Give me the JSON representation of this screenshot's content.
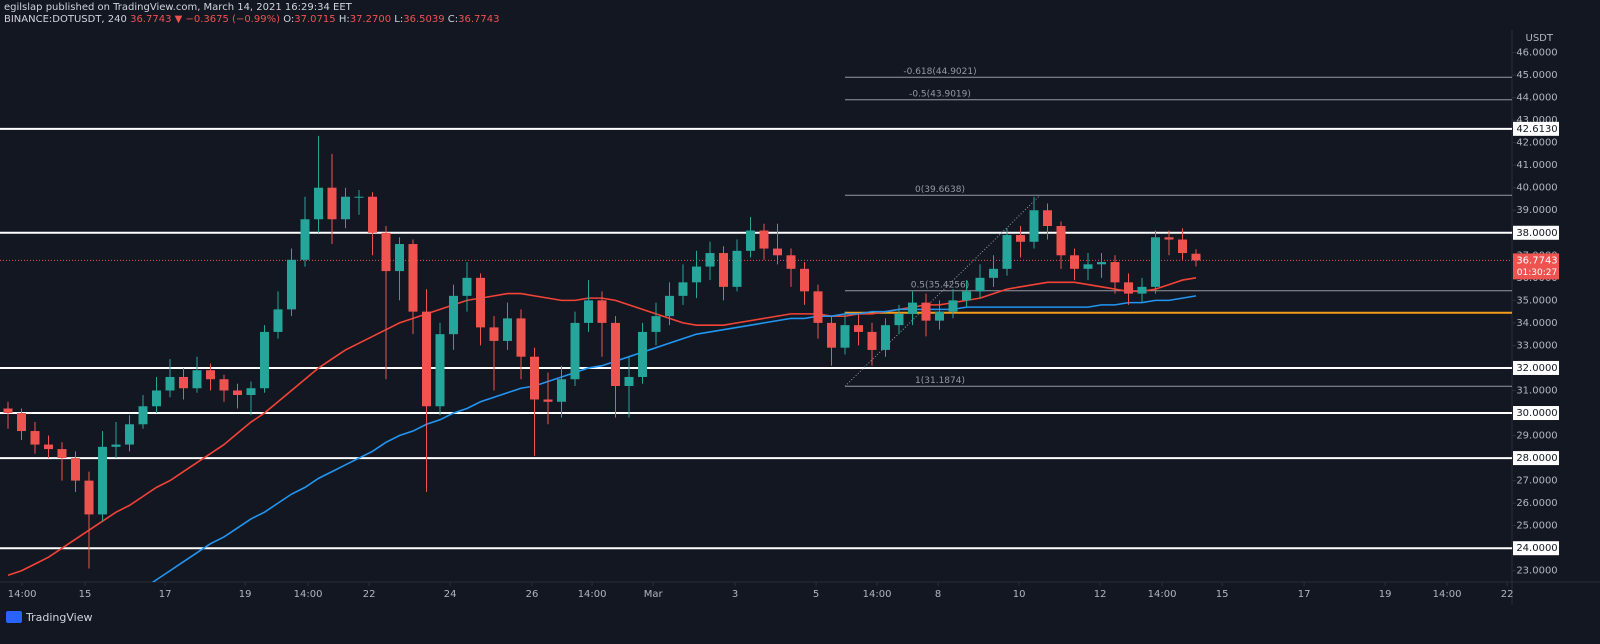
{
  "header": {
    "publisher": "egilslap published on TradingView.com, March 14, 2021 16:29:34 EET",
    "symbol": "BINANCE:DOTUSDT, 240",
    "price": "36.7743",
    "change": "▼ −0.3675 (−0.99%)",
    "o_key": "O:",
    "o": "37.0715",
    "h_key": "H:",
    "h": "37.2700",
    "l_key": "L:",
    "l": "36.5039",
    "c_key": "C:",
    "c": "36.7743"
  },
  "footer": {
    "logo": "TradingView"
  },
  "chart_data": {
    "type": "candlestick",
    "currency": "USDT",
    "up_color": "#26a69a",
    "down_color": "#ef5350",
    "open": [
      30.2,
      30.0,
      29.2,
      28.6,
      28.4,
      28.0,
      27.0,
      25.5,
      28.5,
      28.6,
      29.5,
      30.3,
      31.0,
      31.6,
      31.1,
      31.9,
      31.5,
      31.0,
      30.8,
      31.1,
      33.6,
      34.6,
      36.8,
      38.6,
      40.0,
      38.6,
      39.6,
      39.6,
      38.0,
      36.3,
      37.5,
      34.5,
      30.3,
      33.5,
      35.2,
      36.0,
      33.8,
      33.2,
      34.2,
      32.5,
      30.6,
      30.5,
      31.5,
      34.0,
      35.0,
      34.0,
      31.2,
      31.6,
      33.6,
      34.3,
      35.2,
      35.8,
      36.5,
      37.1,
      35.6,
      37.2,
      38.1,
      37.3,
      37.0,
      36.4,
      35.4,
      34.0,
      32.9,
      33.9,
      33.6,
      32.8,
      33.9,
      34.4,
      34.9,
      34.1,
      34.5,
      35.0,
      35.4,
      36.0,
      36.4,
      37.9,
      37.6,
      39.0,
      38.3,
      37.0,
      36.4,
      36.6,
      36.7,
      35.8,
      35.3,
      35.6,
      37.8,
      37.7,
      37.0715
    ],
    "high": [
      30.5,
      30.2,
      29.6,
      29.0,
      28.7,
      28.3,
      27.4,
      29.2,
      29.6,
      29.9,
      30.8,
      31.6,
      32.4,
      32.0,
      32.5,
      32.2,
      31.7,
      31.3,
      31.4,
      33.9,
      35.4,
      37.3,
      39.6,
      42.3,
      41.5,
      40.0,
      39.9,
      39.8,
      38.3,
      37.8,
      37.7,
      35.5,
      34.0,
      35.7,
      36.7,
      36.2,
      34.3,
      34.9,
      34.6,
      32.9,
      31.8,
      32.1,
      34.5,
      35.9,
      35.4,
      34.3,
      32.5,
      34.0,
      34.9,
      35.8,
      36.6,
      37.2,
      37.6,
      37.4,
      37.7,
      38.7,
      38.4,
      38.4,
      37.3,
      36.7,
      35.7,
      34.3,
      34.5,
      34.4,
      34.0,
      34.2,
      34.8,
      35.4,
      35.3,
      35.0,
      35.5,
      35.9,
      36.6,
      37.0,
      38.2,
      38.3,
      39.6,
      39.3,
      38.5,
      37.3,
      37.1,
      37.1,
      37.0,
      36.2,
      36.0,
      38.1,
      38.1,
      38.2,
      37.27
    ],
    "low": [
      29.3,
      28.8,
      28.2,
      28.0,
      27.0,
      26.5,
      23.1,
      25.2,
      28.0,
      28.3,
      29.3,
      30.0,
      30.7,
      30.6,
      30.9,
      31.0,
      30.5,
      30.2,
      29.9,
      30.9,
      33.3,
      34.3,
      36.5,
      38.0,
      37.5,
      38.2,
      38.8,
      37.0,
      31.5,
      35.0,
      33.5,
      26.5,
      29.9,
      32.8,
      34.5,
      33.0,
      31.0,
      32.8,
      31.5,
      28.1,
      29.5,
      29.8,
      31.2,
      33.6,
      32.5,
      29.8,
      29.8,
      31.3,
      33.0,
      33.9,
      34.8,
      35.1,
      35.9,
      35.0,
      35.4,
      36.9,
      36.8,
      36.6,
      35.6,
      34.8,
      33.3,
      32.1,
      32.6,
      33.0,
      32.1,
      32.5,
      33.5,
      33.9,
      33.4,
      33.7,
      34.2,
      34.7,
      35.1,
      35.6,
      36.1,
      36.9,
      37.3,
      37.7,
      36.4,
      35.9,
      35.9,
      36.0,
      35.3,
      34.8,
      34.9,
      35.3,
      37.0,
      36.8,
      36.5039
    ],
    "close": [
      30.0,
      29.2,
      28.6,
      28.4,
      28.0,
      27.0,
      25.5,
      28.5,
      28.6,
      29.5,
      30.3,
      31.0,
      31.6,
      31.1,
      31.9,
      31.5,
      31.0,
      30.8,
      31.1,
      33.6,
      34.6,
      36.8,
      38.6,
      40.0,
      38.6,
      39.6,
      39.6,
      38.0,
      36.3,
      37.5,
      34.5,
      30.3,
      33.5,
      35.2,
      36.0,
      33.8,
      33.2,
      34.2,
      32.5,
      30.6,
      30.5,
      31.5,
      34.0,
      35.0,
      34.0,
      31.2,
      31.6,
      33.6,
      34.3,
      35.2,
      35.8,
      36.5,
      37.1,
      35.6,
      37.2,
      38.1,
      37.3,
      37.0,
      36.4,
      35.4,
      34.0,
      32.9,
      33.9,
      33.6,
      32.8,
      33.9,
      34.4,
      34.9,
      34.1,
      34.5,
      35.0,
      35.4,
      36.0,
      36.4,
      37.9,
      37.6,
      39.0,
      38.3,
      37.0,
      36.4,
      36.6,
      36.7,
      35.8,
      35.3,
      35.6,
      37.8,
      37.7,
      37.1,
      36.7743
    ],
    "series": [
      {
        "color": "#f44336",
        "values": [
          22.8,
          23.0,
          23.3,
          23.6,
          24.0,
          24.4,
          24.8,
          25.2,
          25.6,
          25.9,
          26.3,
          26.7,
          27.0,
          27.4,
          27.8,
          28.2,
          28.6,
          29.1,
          29.6,
          30.0,
          30.5,
          31.0,
          31.5,
          32.0,
          32.4,
          32.8,
          33.1,
          33.4,
          33.7,
          34.0,
          34.2,
          34.4,
          34.6,
          34.8,
          35.0,
          35.1,
          35.2,
          35.3,
          35.3,
          35.2,
          35.1,
          35.0,
          35.0,
          35.1,
          35.1,
          35.0,
          34.8,
          34.6,
          34.4,
          34.2,
          34.0,
          33.9,
          33.9,
          33.9,
          34.0,
          34.1,
          34.2,
          34.3,
          34.4,
          34.4,
          34.4,
          34.3,
          34.3,
          34.4,
          34.4,
          34.5,
          34.6,
          34.7,
          34.8,
          34.8,
          34.9,
          35.0,
          35.1,
          35.3,
          35.5,
          35.6,
          35.7,
          35.8,
          35.8,
          35.8,
          35.7,
          35.6,
          35.5,
          35.4,
          35.4,
          35.5,
          35.7,
          35.9,
          36.0
        ]
      },
      {
        "color": "#2196f3",
        "values": [
          null,
          null,
          null,
          null,
          null,
          null,
          null,
          null,
          null,
          null,
          22.2,
          22.6,
          23.0,
          23.4,
          23.8,
          24.2,
          24.5,
          24.9,
          25.3,
          25.6,
          26.0,
          26.4,
          26.7,
          27.1,
          27.4,
          27.7,
          28.0,
          28.3,
          28.7,
          29.0,
          29.2,
          29.5,
          29.7,
          30.0,
          30.2,
          30.5,
          30.7,
          30.9,
          31.1,
          31.2,
          31.4,
          31.6,
          31.8,
          32.0,
          32.1,
          32.3,
          32.5,
          32.7,
          32.9,
          33.1,
          33.3,
          33.5,
          33.6,
          33.7,
          33.8,
          33.9,
          34.0,
          34.1,
          34.2,
          34.2,
          34.3,
          34.3,
          34.4,
          34.4,
          34.5,
          34.5,
          34.6,
          34.6,
          34.6,
          34.6,
          34.6,
          34.7,
          34.7,
          34.7,
          34.7,
          34.7,
          34.7,
          34.7,
          34.7,
          34.7,
          34.7,
          34.8,
          34.8,
          34.9,
          34.9,
          35.0,
          35.0,
          35.1,
          35.2
        ]
      }
    ],
    "levels": [
      {
        "value": 42.613,
        "label": "42.6130"
      },
      {
        "value": 38,
        "label": "38.0000"
      },
      {
        "value": 32,
        "label": "32.0000"
      },
      {
        "value": 30,
        "label": "30.0000"
      },
      {
        "value": 28,
        "label": "28.0000"
      },
      {
        "value": 24,
        "label": "24.0000"
      }
    ],
    "zone_line": {
      "value": 34.45,
      "color": "#f59d1a"
    },
    "fib": [
      {
        "value": 44.9021,
        "label": "-0.618(44.9021)"
      },
      {
        "value": 43.9019,
        "label": "-0.5(43.9019)"
      },
      {
        "value": 39.6638,
        "label": "0(39.6638)"
      },
      {
        "value": 35.4256,
        "label": "0.5(35.4256)"
      },
      {
        "value": 31.1874,
        "label": "1(31.1874)"
      }
    ],
    "last": {
      "value": 36.7743,
      "label": "36.7743",
      "countdown": "01:30:27"
    },
    "ylim": [
      22.5,
      47.0
    ],
    "yticks": [
      {
        "value": 23,
        "label": "23.0000"
      },
      {
        "value": 24,
        "label": "24.0000"
      },
      {
        "value": 25,
        "label": "25.0000"
      },
      {
        "value": 26,
        "label": "26.0000"
      },
      {
        "value": 27,
        "label": "27.0000"
      },
      {
        "value": 28,
        "label": "28.0000"
      },
      {
        "value": 29,
        "label": "29.0000"
      },
      {
        "value": 30,
        "label": "30.0000"
      },
      {
        "value": 31,
        "label": "31.0000"
      },
      {
        "value": 32,
        "label": "32.0000"
      },
      {
        "value": 33,
        "label": "33.0000"
      },
      {
        "value": 34,
        "label": "34.0000"
      },
      {
        "value": 35,
        "label": "35.0000"
      },
      {
        "value": 36,
        "label": "36.0000"
      },
      {
        "value": 37,
        "label": "37.0000"
      },
      {
        "value": 38,
        "label": "38.0000"
      },
      {
        "value": 39,
        "label": "39.0000"
      },
      {
        "value": 40,
        "label": "40.0000"
      },
      {
        "value": 41,
        "label": "41.0000"
      },
      {
        "value": 42,
        "label": "42.0000"
      },
      {
        "value": 43,
        "label": "43.0000"
      },
      {
        "value": 44,
        "label": "44.0000"
      },
      {
        "value": 45,
        "label": "45.0000"
      },
      {
        "value": 46,
        "label": "46.0000"
      }
    ],
    "xlim": [
      -0.6,
      111.4
    ],
    "xticks": [
      {
        "value": 1.04,
        "label": "14:00"
      },
      {
        "value": 5.7,
        "label": "15"
      },
      {
        "value": 11.63,
        "label": "17"
      },
      {
        "value": 17.56,
        "label": "19"
      },
      {
        "value": 22.22,
        "label": "14:00"
      },
      {
        "value": 26.74,
        "label": "22"
      },
      {
        "value": 32.74,
        "label": "24"
      },
      {
        "value": 38.81,
        "label": "26"
      },
      {
        "value": 43.26,
        "label": "14:00"
      },
      {
        "value": 47.78,
        "label": "Mar"
      },
      {
        "value": 53.85,
        "label": "3"
      },
      {
        "value": 59.85,
        "label": "5"
      },
      {
        "value": 64.37,
        "label": "14:00"
      },
      {
        "value": 68.89,
        "label": "8"
      },
      {
        "value": 74.89,
        "label": "10"
      },
      {
        "value": 80.89,
        "label": "12"
      },
      {
        "value": 85.48,
        "label": "14:00"
      },
      {
        "value": 89.93,
        "label": "15"
      },
      {
        "value": 96,
        "label": "17"
      },
      {
        "value": 102,
        "label": "19"
      },
      {
        "value": 106.59,
        "label": "14:00"
      },
      {
        "value": 111.04,
        "label": "22"
      }
    ],
    "grid": false
  }
}
